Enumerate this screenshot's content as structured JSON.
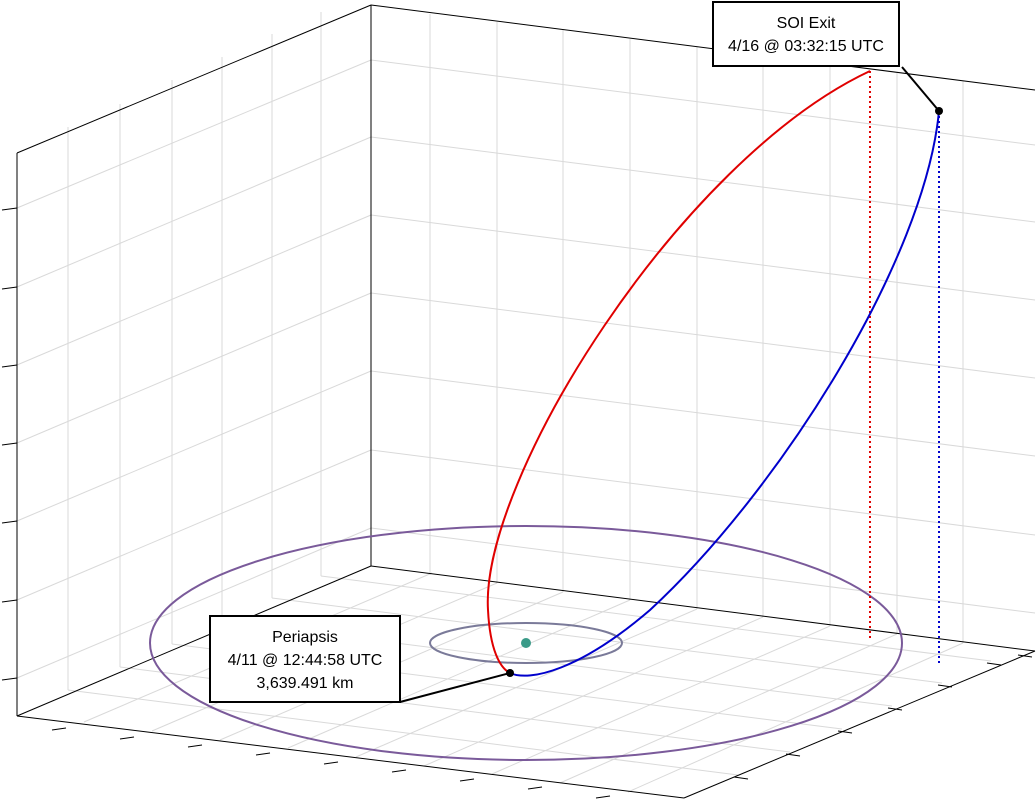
{
  "chart_data": {
    "type": "3d-trajectory",
    "grid": true,
    "annotations": {
      "soi_exit": {
        "title": "SOI Exit",
        "time": "4/16 @ 03:32:15 UTC"
      },
      "periapsis": {
        "title": "Periapsis",
        "time": "4/11 @ 12:44:58 UTC",
        "altitude": "3,639.491 km"
      }
    },
    "series": [
      {
        "role": "outbound-arc",
        "color": "#e00000"
      },
      {
        "role": "return-arc",
        "color": "#0000cc"
      },
      {
        "role": "soi-boundary",
        "color": "#7a5a9a"
      },
      {
        "role": "body-orbit",
        "color": "#7a7a99"
      },
      {
        "role": "central-body",
        "color": "#3a9a88"
      }
    ]
  }
}
